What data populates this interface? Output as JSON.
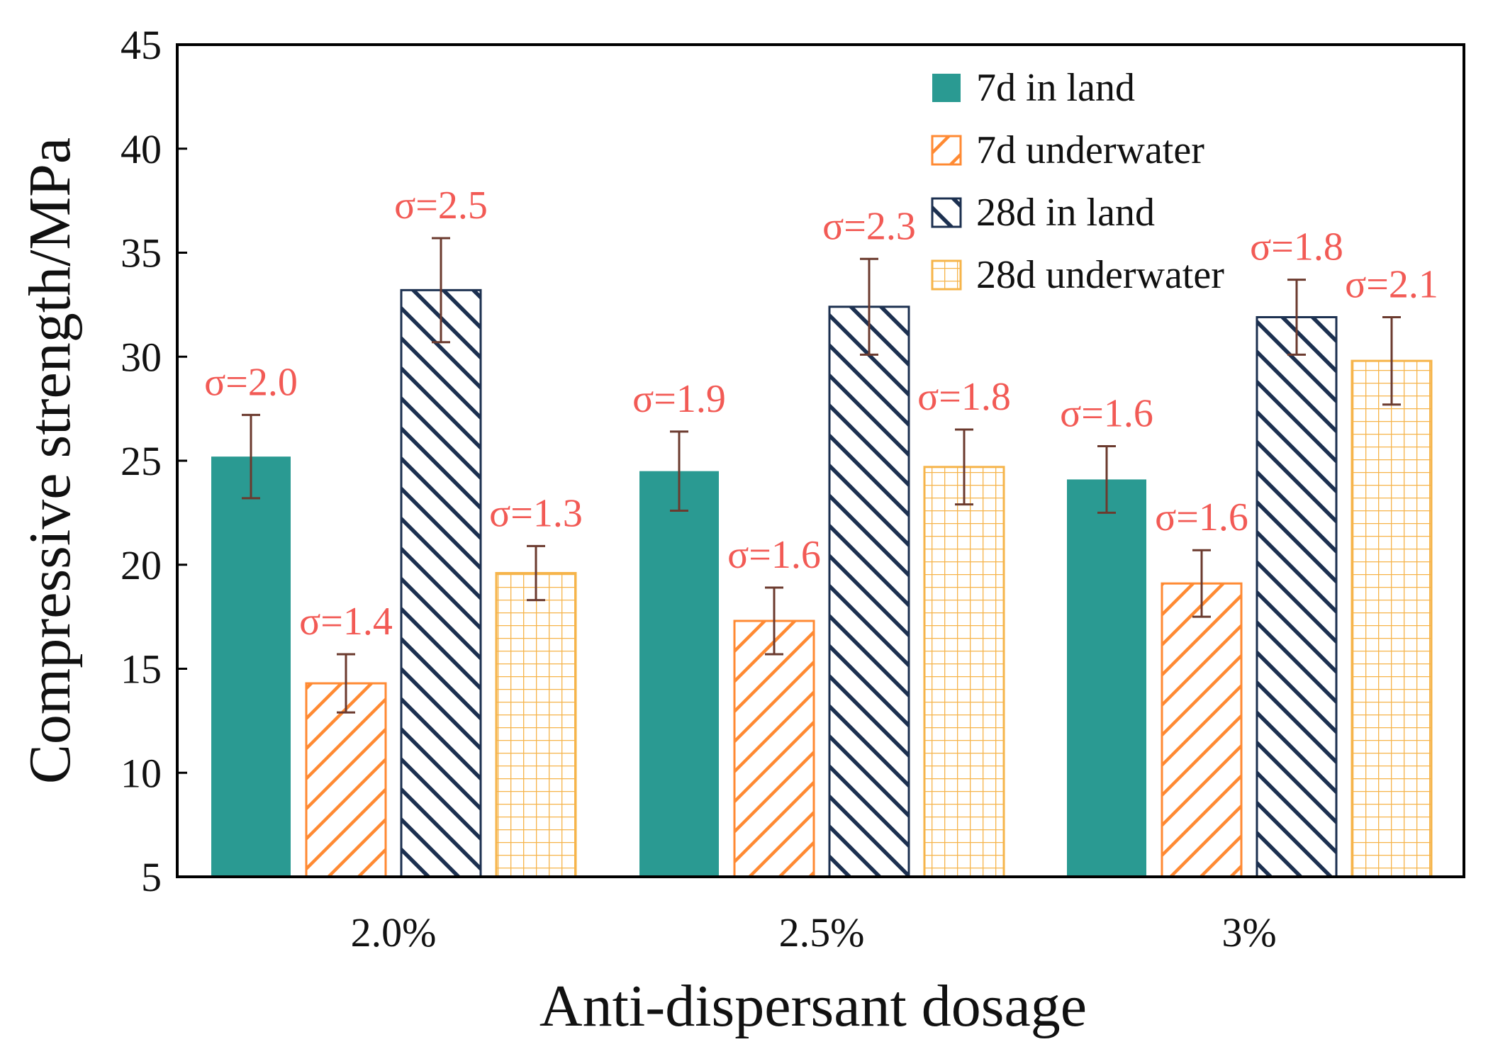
{
  "chart_data": {
    "type": "bar",
    "title": "",
    "xlabel": "Anti-dispersant dosage",
    "ylabel": "Compressive strength/MPa",
    "ylim": [
      5,
      45
    ],
    "yticks": [
      5,
      10,
      15,
      20,
      25,
      30,
      35,
      40,
      45
    ],
    "ytick_labels": [
      "5",
      "10",
      "15",
      "20",
      "25",
      "30",
      "35",
      "40",
      "45"
    ],
    "categories": [
      "2.0%",
      "2.5%",
      "3%"
    ],
    "legend_position": "top-right",
    "series": [
      {
        "name": "7d in land",
        "pattern": "solid",
        "color": "#2a9a92",
        "values": [
          25.2,
          24.5,
          24.1
        ],
        "errors": [
          2.0,
          1.9,
          1.6
        ],
        "labels": [
          "σ=2.0",
          "σ=1.9",
          "σ=1.6"
        ]
      },
      {
        "name": "7d underwater",
        "pattern": "diagonal",
        "color": "#ff8a33",
        "values": [
          14.3,
          17.3,
          19.1
        ],
        "errors": [
          1.4,
          1.6,
          1.6
        ],
        "labels": [
          "σ=1.4",
          "σ=1.6",
          "σ=1.6"
        ]
      },
      {
        "name": "28d in land",
        "pattern": "back-diagonal",
        "color": "#1c3050",
        "values": [
          33.2,
          32.4,
          31.9
        ],
        "errors": [
          2.5,
          2.3,
          1.8
        ],
        "labels": [
          "σ=2.5",
          "σ=2.3",
          "σ=1.8"
        ]
      },
      {
        "name": "28d underwater",
        "pattern": "grid",
        "color": "#f6b44a",
        "values": [
          19.6,
          24.7,
          29.8
        ],
        "errors": [
          1.3,
          1.8,
          2.1
        ],
        "labels": [
          "σ=1.3",
          "σ=1.8",
          "σ=2.1"
        ]
      }
    ],
    "annotation_color": "#f25a55",
    "errorbar_color": "#6b3a2e"
  }
}
